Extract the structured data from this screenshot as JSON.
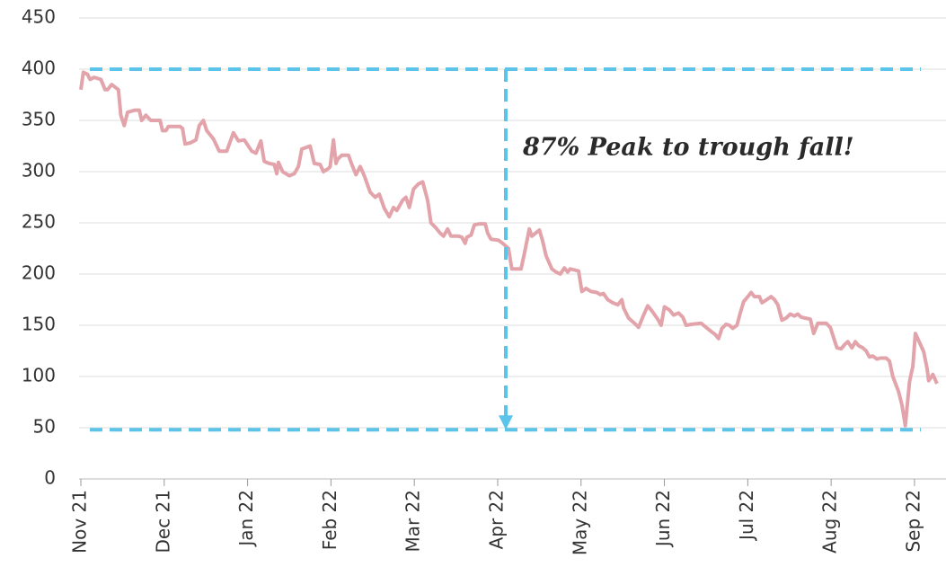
{
  "chart_data": {
    "type": "line",
    "annotation": {
      "text": "87% Peak to trough fall!",
      "peak": 400,
      "trough": 48
    },
    "xlim": [
      0,
      10.27
    ],
    "xticks": [
      {
        "value": 0,
        "label": "Nov 21"
      },
      {
        "value": 1,
        "label": "Dec 21"
      },
      {
        "value": 2,
        "label": "Jan 22"
      },
      {
        "value": 3,
        "label": "Feb 22"
      },
      {
        "value": 4,
        "label": "Mar 22"
      },
      {
        "value": 5,
        "label": "Apr 22"
      },
      {
        "value": 6,
        "label": "May 22"
      },
      {
        "value": 7,
        "label": "Jun 22"
      },
      {
        "value": 8,
        "label": "Jul 22"
      },
      {
        "value": 9,
        "label": "Aug 22"
      },
      {
        "value": 10,
        "label": "Sep 22"
      }
    ],
    "ylim": [
      0,
      450
    ],
    "yticks": [
      0,
      50,
      100,
      150,
      200,
      250,
      300,
      350,
      400,
      450
    ],
    "grid": true,
    "series": [
      {
        "color": "#e2a4aa",
        "x": [
          0,
          0.03,
          0.08,
          0.11,
          0.16,
          0.24,
          0.29,
          0.32,
          0.37,
          0.45,
          0.48,
          0.52,
          0.56,
          0.65,
          0.7,
          0.73,
          0.78,
          0.84,
          0.95,
          0.98,
          1.02,
          1.05,
          1.19,
          1.22,
          1.25,
          1.31,
          1.38,
          1.42,
          1.47,
          1.51,
          1.59,
          1.66,
          1.75,
          1.83,
          1.89,
          1.96,
          2.05,
          2.1,
          2.16,
          2.2,
          2.26,
          2.32,
          2.35,
          2.37,
          2.42,
          2.5,
          2.56,
          2.61,
          2.65,
          2.75,
          2.8,
          2.87,
          2.91,
          2.97,
          2.99,
          3.03,
          3.06,
          3.08,
          3.13,
          3.21,
          3.25,
          3.3,
          3.35,
          3.4,
          3.47,
          3.53,
          3.58,
          3.64,
          3.7,
          3.75,
          3.79,
          3.86,
          3.9,
          3.94,
          3.99,
          4.05,
          4.1,
          4.16,
          4.2,
          4.26,
          4.31,
          4.35,
          4.4,
          4.44,
          4.53,
          4.57,
          4.61,
          4.63,
          4.68,
          4.72,
          4.78,
          4.85,
          4.88,
          4.92,
          5.01,
          5.06,
          5.13,
          5.17,
          5.28,
          5.32,
          5.38,
          5.41,
          5.5,
          5.54,
          5.58,
          5.65,
          5.7,
          5.75,
          5.8,
          5.84,
          5.87,
          5.97,
          6.01,
          6.06,
          6.12,
          6.19,
          6.23,
          6.27,
          6.32,
          6.38,
          6.44,
          6.49,
          6.51,
          6.57,
          6.64,
          6.69,
          6.75,
          6.8,
          6.86,
          6.92,
          6.96,
          7.0,
          7.06,
          7.11,
          7.17,
          7.22,
          7.26,
          7.33,
          7.44,
          7.5,
          7.56,
          7.61,
          7.65,
          7.69,
          7.74,
          7.78,
          7.82,
          7.87,
          7.91,
          7.95,
          8.0,
          8.04,
          8.08,
          8.14,
          8.17,
          8.21,
          8.28,
          8.32,
          8.36,
          8.41,
          8.46,
          8.51,
          8.56,
          8.6,
          8.64,
          8.69,
          8.75,
          8.79,
          8.84,
          8.94,
          8.99,
          9.03,
          9.07,
          9.12,
          9.16,
          9.2,
          9.25,
          9.29,
          9.33,
          9.38,
          9.42,
          9.46,
          9.5,
          9.55,
          9.59,
          9.66,
          9.7,
          9.74,
          9.81,
          9.85,
          9.89,
          9.94,
          9.98,
          10.01,
          10.05,
          10.11,
          10.15,
          10.17,
          10.22,
          10.27
        ],
        "values": [
          380,
          397,
          395,
          390,
          392,
          390,
          380,
          380,
          385,
          380,
          355,
          345,
          358,
          360,
          360,
          350,
          355,
          350,
          350,
          340,
          340,
          344,
          344,
          342,
          327,
          328,
          331,
          345,
          350,
          340,
          332,
          320,
          320,
          338,
          330,
          331,
          320,
          318,
          330,
          310,
          308,
          307,
          298,
          309,
          300,
          296,
          298,
          305,
          322,
          325,
          308,
          307,
          300,
          303,
          305,
          331,
          308,
          312,
          316,
          316,
          307,
          297,
          305,
          296,
          280,
          275,
          278,
          264,
          256,
          265,
          262,
          272,
          275,
          265,
          283,
          288,
          290,
          272,
          250,
          245,
          240,
          237,
          244,
          237,
          237,
          236,
          230,
          236,
          238,
          248,
          249,
          249,
          240,
          234,
          233,
          230,
          225,
          205,
          205,
          220,
          244,
          237,
          243,
          232,
          218,
          205,
          202,
          200,
          206,
          202,
          205,
          203,
          183,
          186,
          183,
          182,
          180,
          181,
          175,
          172,
          170,
          175,
          167,
          157,
          152,
          148,
          160,
          169,
          163,
          156,
          150,
          168,
          165,
          160,
          162,
          158,
          150,
          151,
          152,
          148,
          144,
          141,
          137,
          147,
          151,
          150,
          147,
          150,
          162,
          173,
          178,
          182,
          178,
          178,
          172,
          174,
          178,
          175,
          170,
          155,
          157,
          161,
          159,
          161,
          158,
          157,
          156,
          142,
          152,
          152,
          148,
          138,
          128,
          127,
          131,
          134,
          128,
          134,
          130,
          128,
          125,
          119,
          120,
          117,
          118,
          118,
          115,
          100,
          85,
          72,
          52,
          95,
          110,
          142,
          135,
          124,
          108,
          96,
          102,
          93
        ]
      }
    ]
  }
}
